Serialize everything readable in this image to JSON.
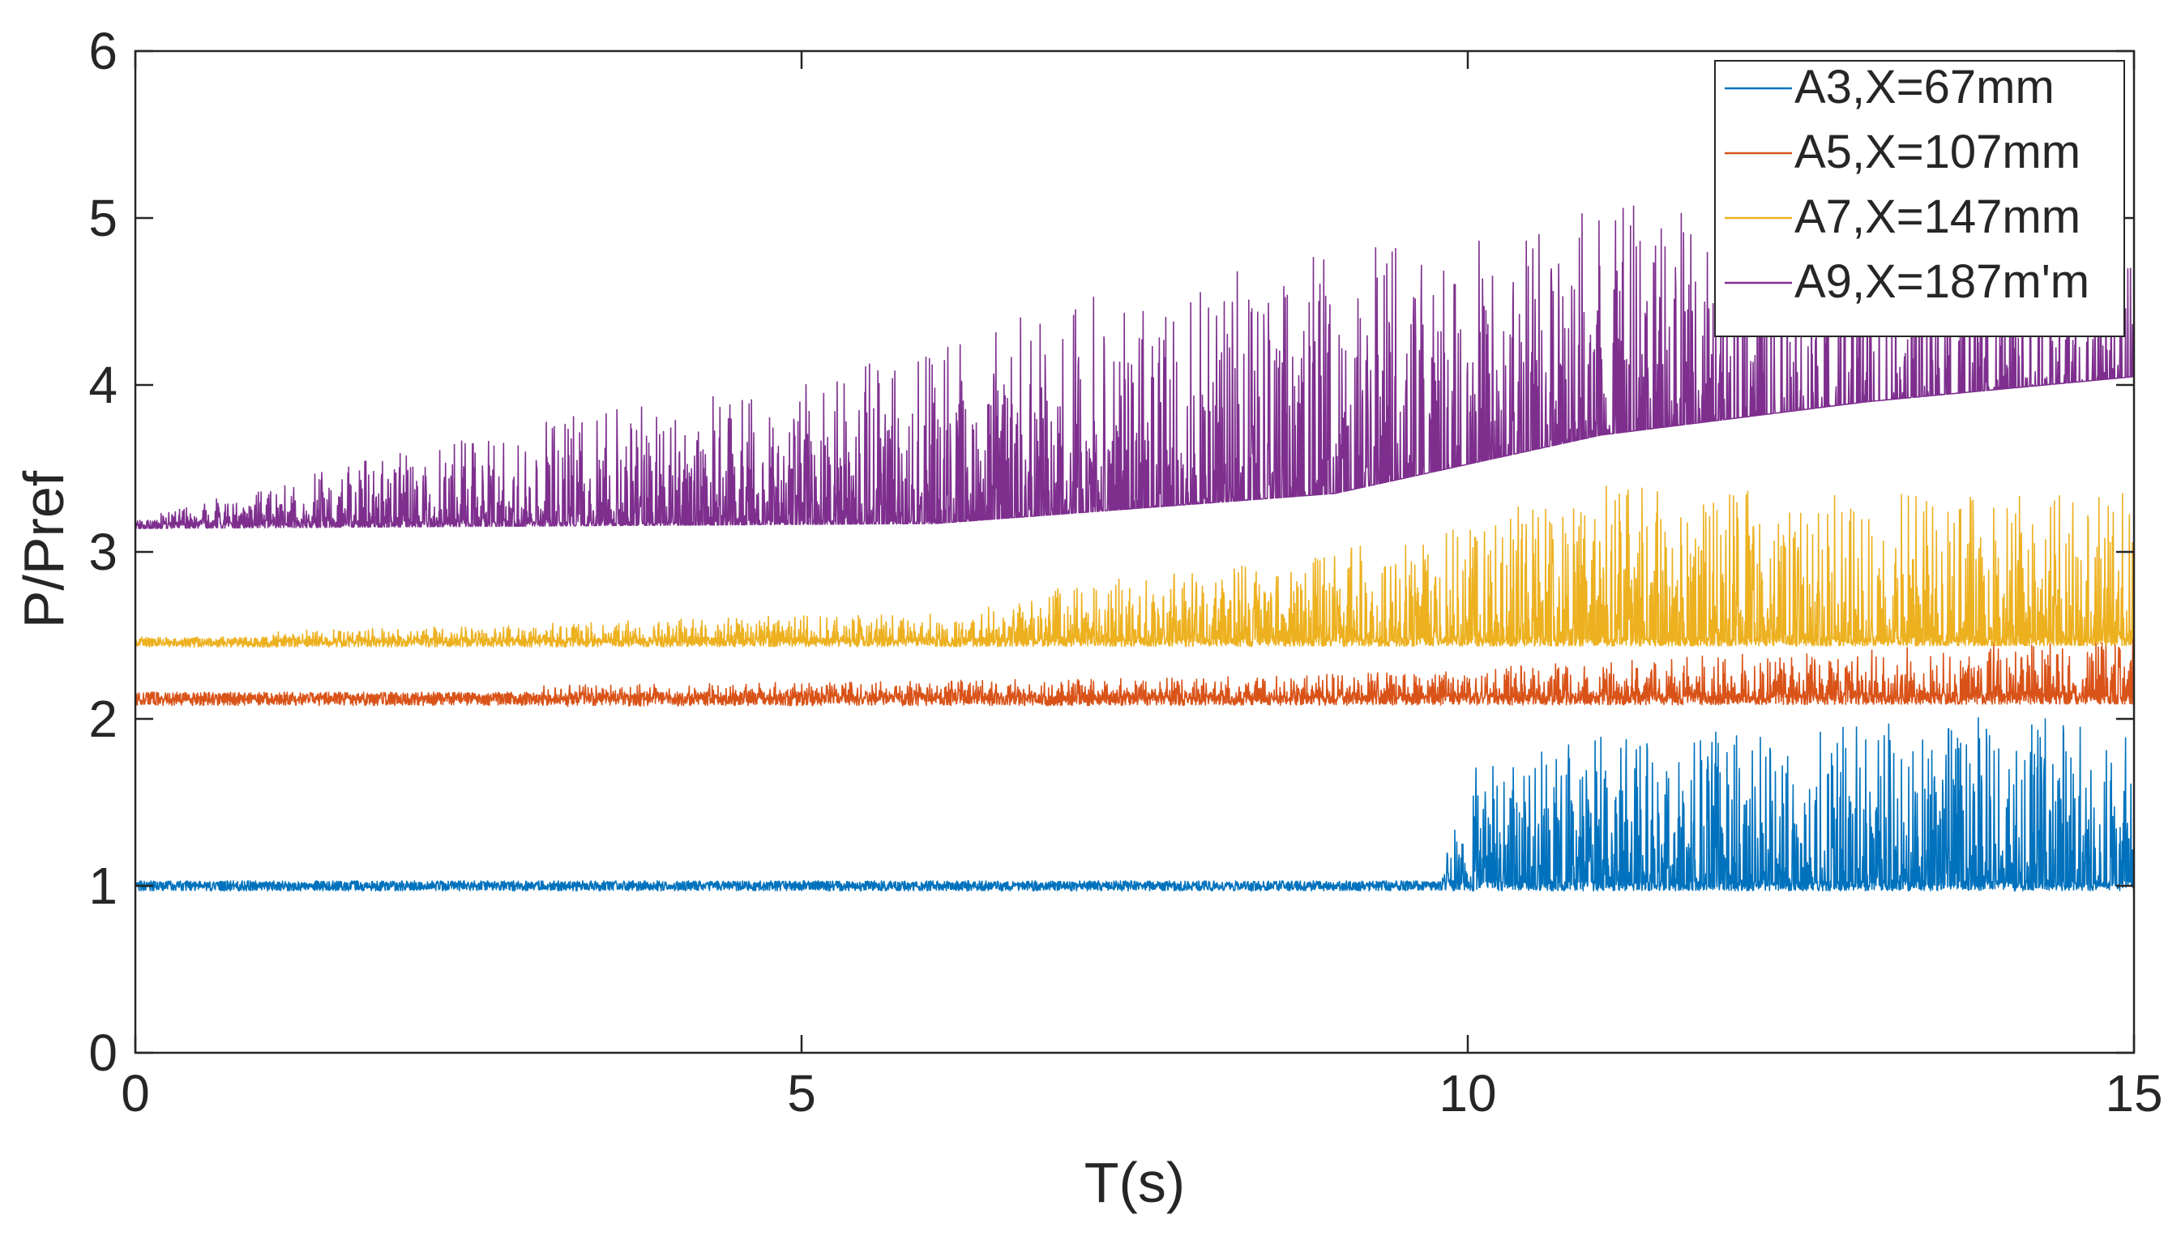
{
  "chart_data": {
    "type": "line",
    "title": "",
    "xlabel": "T(s)",
    "ylabel": "P/Pref",
    "xlim": [
      0,
      15
    ],
    "ylim": [
      0,
      6
    ],
    "xticks": [
      0,
      5,
      10,
      15
    ],
    "yticks": [
      0,
      1,
      2,
      3,
      4,
      5,
      6
    ],
    "grid": false,
    "legend_position": "top-right",
    "series": [
      {
        "name": "A3,X=67mm",
        "color": "#0072BD",
        "baseline": 1.0,
        "noise": 0.03,
        "envelope": [
          {
            "t": 0,
            "max": 1.03
          },
          {
            "t": 9.8,
            "max": 1.05
          },
          {
            "t": 10.0,
            "max": 1.7
          },
          {
            "t": 11.0,
            "max": 1.9
          },
          {
            "t": 13.5,
            "max": 2.0
          },
          {
            "t": 15.0,
            "max": 2.05
          }
        ],
        "min_envelope": [
          {
            "t": 0,
            "min": 0.97
          },
          {
            "t": 15,
            "min": 0.97
          }
        ]
      },
      {
        "name": "A5,X=107mm",
        "color": "#D95319",
        "baseline": 2.12,
        "noise": 0.04,
        "envelope": [
          {
            "t": 0,
            "max": 2.17
          },
          {
            "t": 8.0,
            "max": 2.25
          },
          {
            "t": 10.0,
            "max": 2.3
          },
          {
            "t": 11.0,
            "max": 2.35
          },
          {
            "t": 13.0,
            "max": 2.42
          },
          {
            "t": 15.0,
            "max": 2.5
          }
        ],
        "min_envelope": [
          {
            "t": 0,
            "min": 2.07
          },
          {
            "t": 15,
            "min": 2.09
          }
        ]
      },
      {
        "name": "A7,X=147mm",
        "color": "#EDB120",
        "baseline": 2.46,
        "noise": 0.03,
        "envelope": [
          {
            "t": 0,
            "max": 2.5
          },
          {
            "t": 6.2,
            "max": 2.65
          },
          {
            "t": 7.0,
            "max": 2.8
          },
          {
            "t": 9.0,
            "max": 3.0
          },
          {
            "t": 11.0,
            "max": 3.4
          },
          {
            "t": 13.0,
            "max": 3.35
          },
          {
            "t": 15.0,
            "max": 3.35
          }
        ],
        "min_envelope": [
          {
            "t": 0,
            "min": 2.43
          },
          {
            "t": 15,
            "min": 2.44
          }
        ]
      },
      {
        "name": "A9,X=187m'm",
        "color": "#7E2F8E",
        "baseline": 3.16,
        "noise": 0.03,
        "envelope": [
          {
            "t": 0,
            "max": 3.2
          },
          {
            "t": 1.0,
            "max": 3.4
          },
          {
            "t": 3.0,
            "max": 3.8
          },
          {
            "t": 5.0,
            "max": 4.0
          },
          {
            "t": 7.0,
            "max": 4.5
          },
          {
            "t": 9.0,
            "max": 4.8
          },
          {
            "t": 11.0,
            "max": 5.1
          },
          {
            "t": 13.0,
            "max": 5.0
          },
          {
            "t": 15.0,
            "max": 5.0
          }
        ],
        "min_envelope": [
          {
            "t": 0,
            "min": 3.14
          },
          {
            "t": 6.0,
            "min": 3.17
          },
          {
            "t": 9.0,
            "min": 3.35
          },
          {
            "t": 11.0,
            "min": 3.7
          },
          {
            "t": 13.0,
            "min": 3.9
          },
          {
            "t": 15.0,
            "min": 4.05
          }
        ]
      }
    ]
  }
}
